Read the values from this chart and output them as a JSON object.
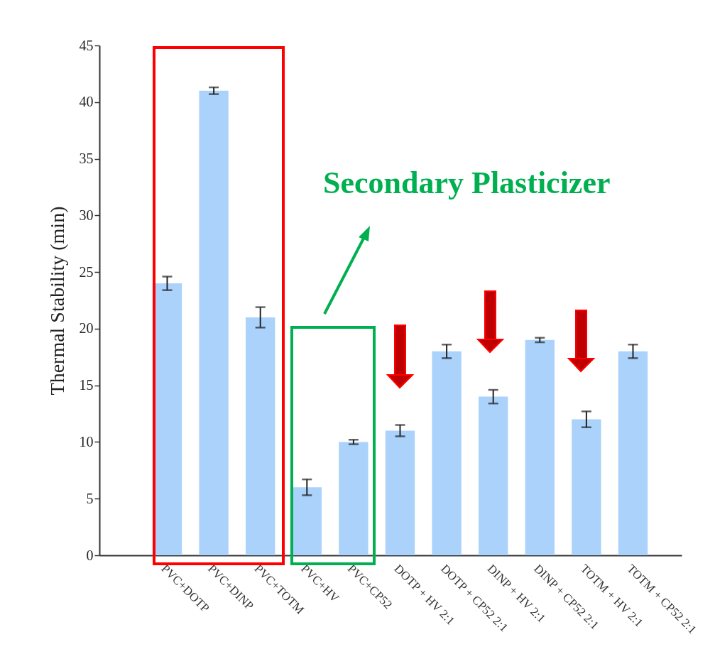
{
  "chart_data": {
    "type": "bar",
    "ylabel": "Thermal Stability (min)",
    "categories": [
      "PVC+DOTP",
      "PVC+DINP",
      "PVC+TOTM",
      "PVC+HV",
      "PVC+CP52",
      "DOTP + HV 2:1",
      "DOTP + CP52 2:1",
      "DINP + HV 2:1",
      "DINP + CP52 2:1",
      "TOTM + HV 2:1",
      "TOTM + CP52 2:1"
    ],
    "values": [
      24,
      41,
      21,
      6,
      10,
      11,
      18,
      14,
      19,
      12,
      18
    ],
    "errors": [
      0.6,
      0.3,
      0.9,
      0.7,
      0.2,
      0.5,
      0.6,
      0.6,
      0.2,
      0.7,
      0.6
    ],
    "color": "#aad2fb",
    "ylim": [
      0,
      45
    ],
    "yticks": [
      0,
      5,
      10,
      15,
      20,
      25,
      30,
      35,
      40,
      45
    ],
    "annotations": [
      "Secondary Plasticizer"
    ]
  }
}
